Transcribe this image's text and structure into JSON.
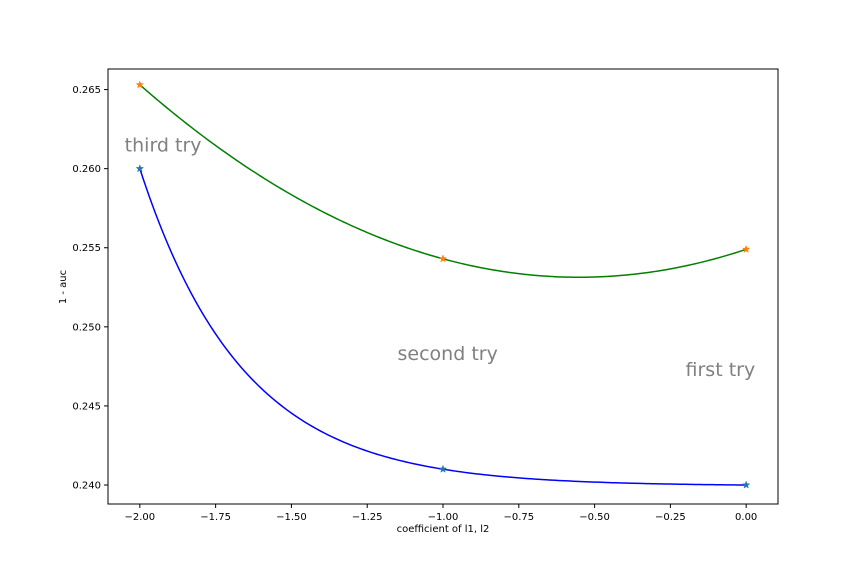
{
  "chart_data": {
    "type": "line",
    "title": "",
    "xlabel": "coefficient of l1, l2",
    "ylabel": "1 - auc",
    "xlim": [
      -2.105,
      0.105
    ],
    "ylim": [
      0.2388,
      0.2663
    ],
    "x_ticks": [
      -2.0,
      -1.75,
      -1.5,
      -1.25,
      -1.0,
      -0.75,
      -0.5,
      -0.25,
      0.0
    ],
    "x_tick_labels": [
      "−2.00",
      "−1.75",
      "−1.50",
      "−1.25",
      "−1.00",
      "−0.75",
      "−0.50",
      "−0.25",
      "0.00"
    ],
    "y_ticks": [
      0.24,
      0.245,
      0.25,
      0.255,
      0.26,
      0.265
    ],
    "y_tick_labels": [
      "0.240",
      "0.245",
      "0.250",
      "0.255",
      "0.260",
      "0.265"
    ],
    "grid": false,
    "series": [
      {
        "x": [
          -2.0,
          -1.0,
          0.0
        ],
        "values": [
          0.2653,
          0.2543,
          0.2549
        ],
        "line_color": "#008000",
        "marker_color": "#ff7f0e",
        "smoothing": "quadratic"
      },
      {
        "x": [
          -2.0,
          -1.0,
          0.0
        ],
        "values": [
          0.26,
          0.241,
          0.24
        ],
        "line_color": "#0000ff",
        "marker_color": "#1f77b4",
        "smoothing": "exponential"
      }
    ],
    "annotations": [
      {
        "text": "third try",
        "x": -2.05,
        "y": 0.2611
      },
      {
        "text": "second try",
        "x": -1.15,
        "y": 0.2479
      },
      {
        "text": "first try",
        "x": -0.2,
        "y": 0.2469
      }
    ]
  }
}
